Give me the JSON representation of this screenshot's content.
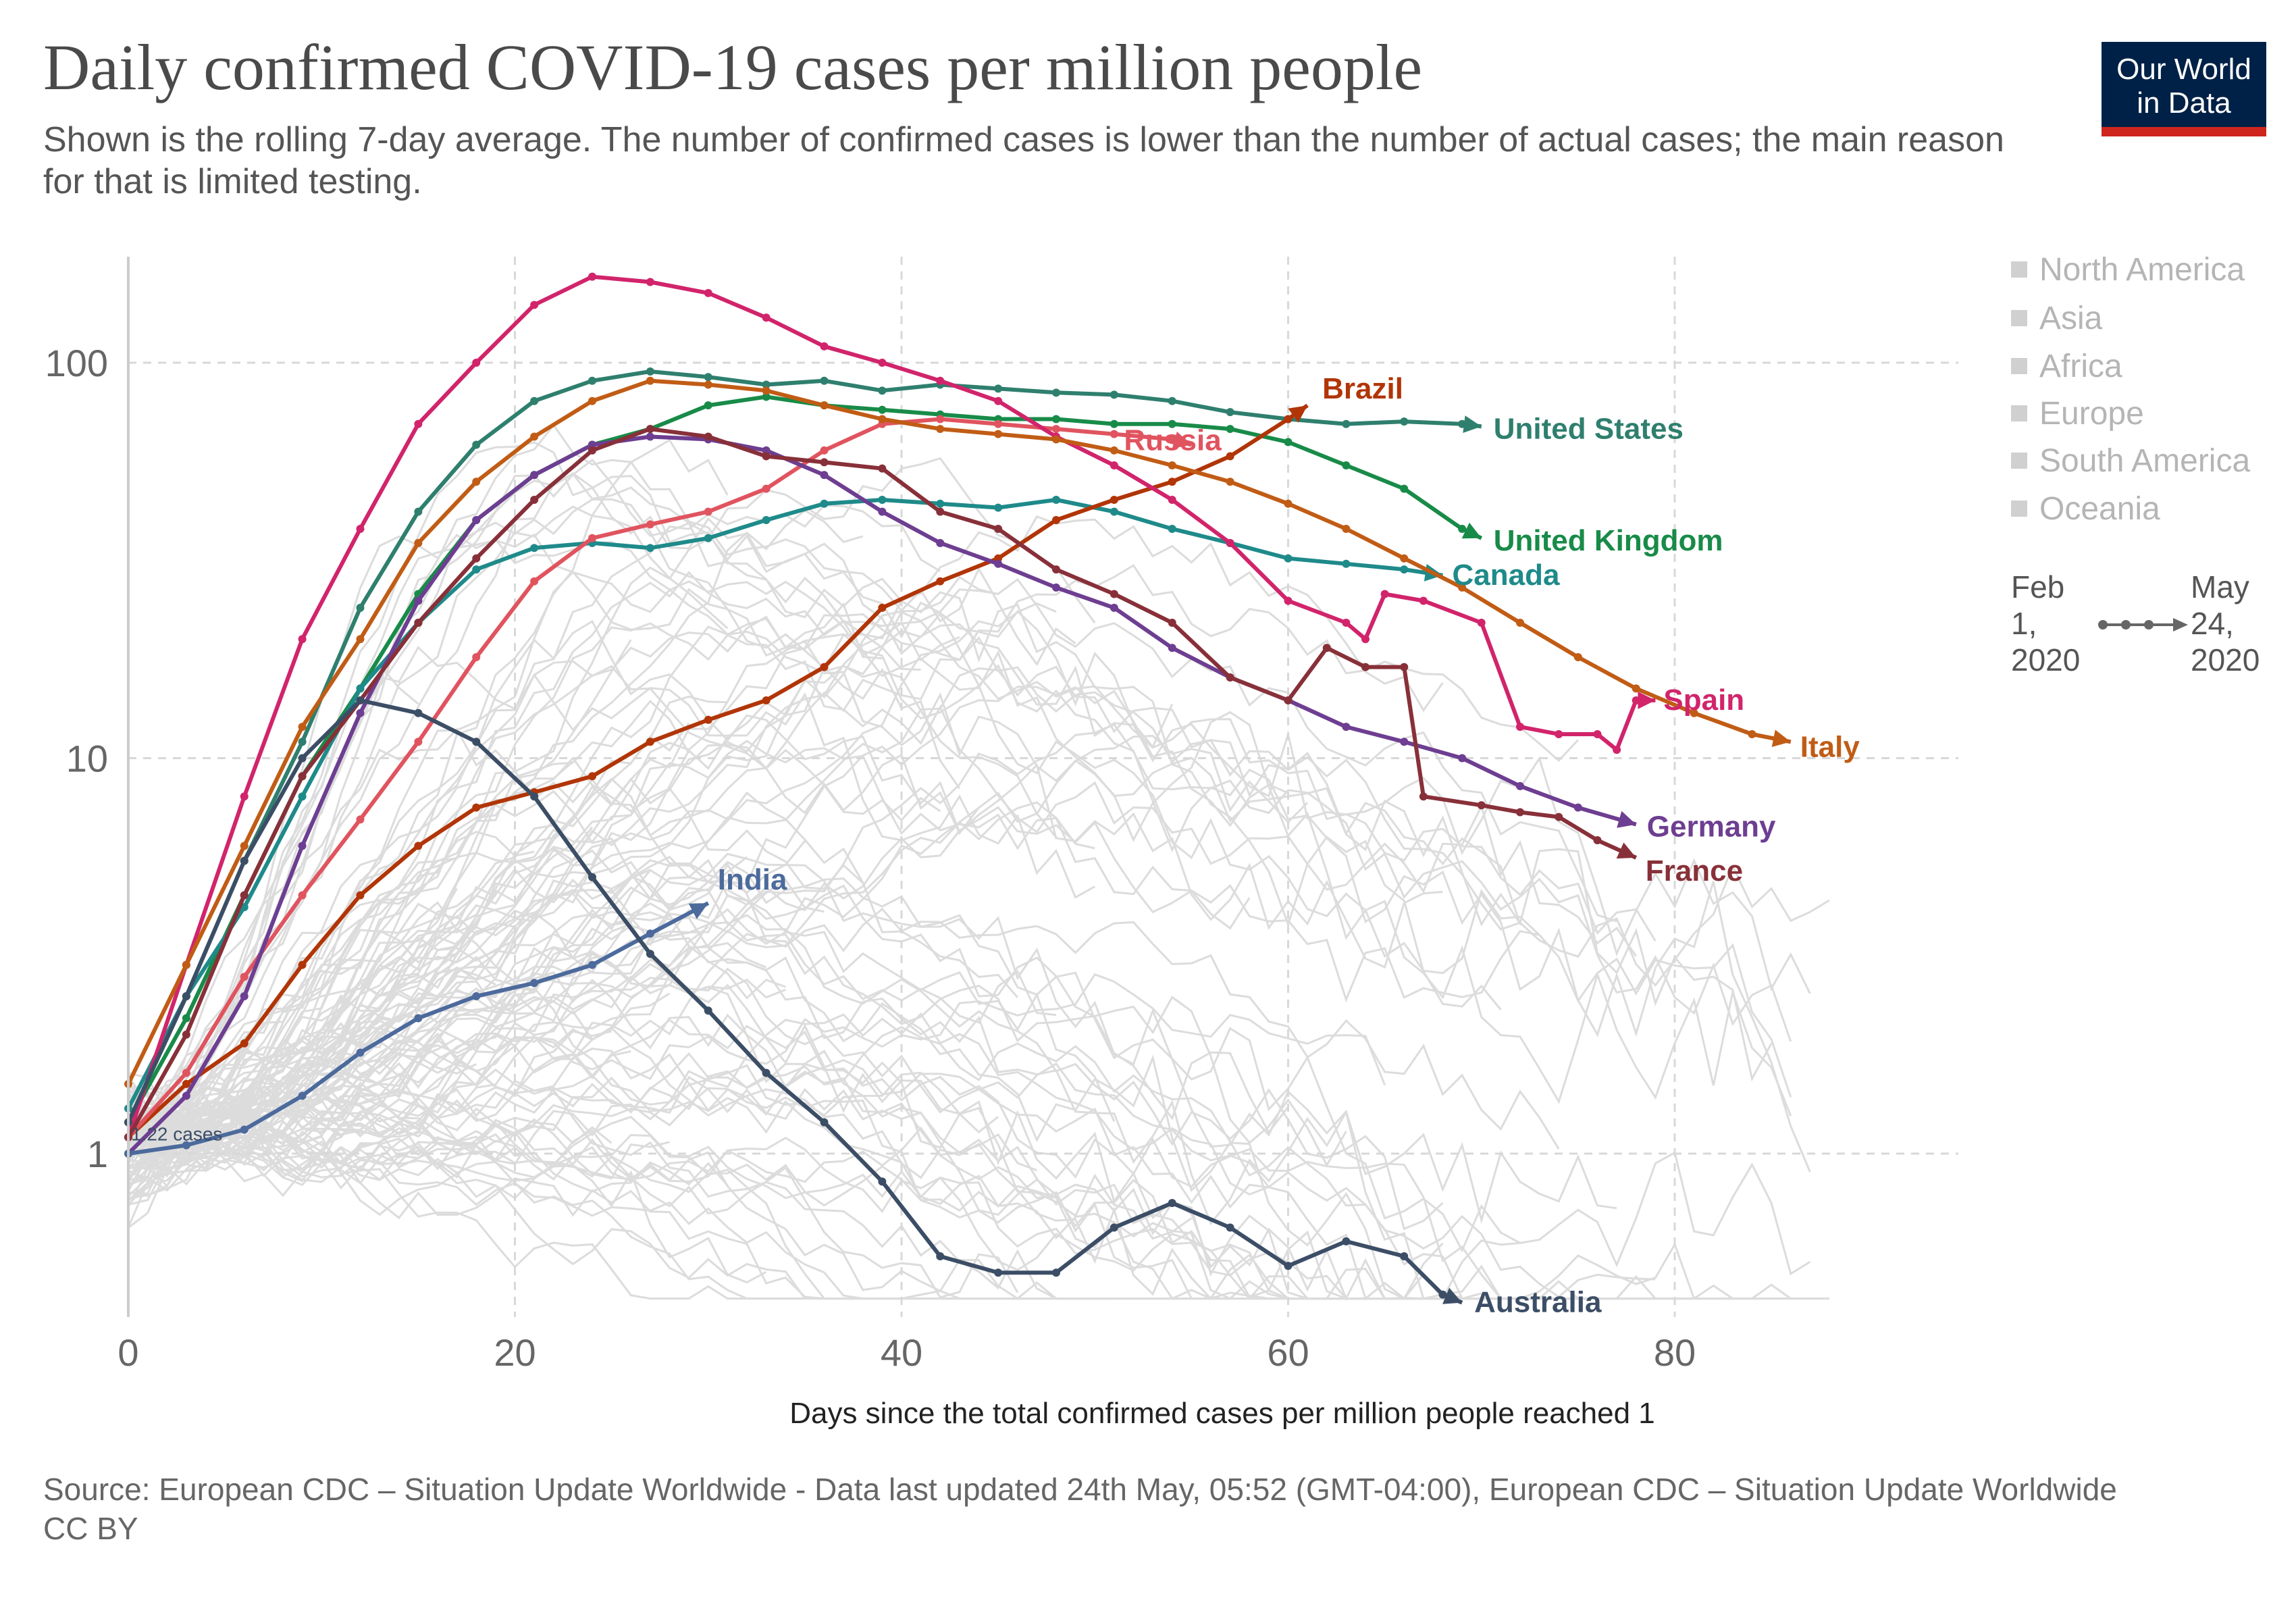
{
  "title": "Daily confirmed COVID-19 cases per million people",
  "subtitle": "Shown is the rolling 7-day average. The number of confirmed cases is lower than the number of actual cases; the main reason for that is limited testing.",
  "logo": {
    "line1": "Our World",
    "line2": "in Data"
  },
  "legend": [
    "North America",
    "Asia",
    "Africa",
    "Europe",
    "South America",
    "Oceania"
  ],
  "timeline": {
    "start_a": "Feb",
    "start_b": "1,",
    "start_c": "2020",
    "end_a": "May",
    "end_b": "24,",
    "end_c": "2020"
  },
  "x_axis_title": "Days since the total confirmed cases per million people reached 1",
  "source_text": "Source: European CDC – Situation Update Worldwide - Data last updated 24th May, 05:52 (GMT-04:00), European CDC – Situation Update Worldwide",
  "license": "CC BY",
  "colors": {
    "logo_bg": "#002147",
    "logo_bar": "#ce261e",
    "background_lines": "#d9d9d9"
  },
  "chart_data": {
    "type": "line",
    "title": "Daily confirmed COVID-19 cases per million people",
    "xlabel": "Days since the total confirmed cases per million people reached 1",
    "ylabel": "",
    "yscale": "log",
    "xlim": [
      0,
      95
    ],
    "ylim": [
      0.42,
      200
    ],
    "xticks": [
      0,
      20,
      40,
      60,
      80
    ],
    "yticks": [
      1,
      10,
      100
    ],
    "ytick_labels": [
      "1",
      "10",
      "100"
    ],
    "grid": true,
    "annotation": "1.22 cases",
    "series": [
      {
        "name": "United States",
        "color": "#2f7f6e",
        "x": [
          0,
          3,
          6,
          9,
          12,
          15,
          18,
          21,
          24,
          27,
          30,
          33,
          36,
          39,
          42,
          45,
          48,
          51,
          54,
          57,
          60,
          63,
          66,
          69,
          70
        ],
        "y": [
          1.2,
          2.5,
          5.5,
          11,
          24,
          42,
          62,
          80,
          90,
          95,
          92,
          88,
          90,
          85,
          88,
          86,
          84,
          83,
          80,
          75,
          72,
          70,
          71,
          70,
          69
        ]
      },
      {
        "name": "United Kingdom",
        "color": "#188b48",
        "x": [
          0,
          3,
          6,
          9,
          12,
          15,
          18,
          21,
          24,
          27,
          30,
          33,
          36,
          39,
          42,
          45,
          48,
          51,
          54,
          57,
          60,
          63,
          66,
          69,
          70
        ],
        "y": [
          1.2,
          2.2,
          4.5,
          9,
          15,
          26,
          40,
          52,
          62,
          68,
          78,
          82,
          78,
          76,
          74,
          72,
          72,
          70,
          70,
          68,
          63,
          55,
          48,
          38,
          36
        ]
      },
      {
        "name": "Canada",
        "color": "#1f8a8a",
        "x": [
          0,
          3,
          6,
          9,
          12,
          15,
          18,
          21,
          24,
          27,
          30,
          33,
          36,
          39,
          42,
          45,
          48,
          51,
          54,
          57,
          60,
          63,
          66,
          68
        ],
        "y": [
          1.3,
          2.5,
          4.2,
          8,
          15,
          22,
          30,
          34,
          35,
          34,
          36,
          40,
          44,
          45,
          44,
          43,
          45,
          42,
          38,
          35,
          32,
          31,
          30,
          29
        ]
      },
      {
        "name": "Brazil",
        "color": "#b13507",
        "x": [
          0,
          3,
          6,
          9,
          12,
          15,
          18,
          21,
          24,
          27,
          30,
          33,
          36,
          39,
          42,
          45,
          48,
          51,
          54,
          57,
          60,
          61
        ],
        "y": [
          1.1,
          1.5,
          1.9,
          3.0,
          4.5,
          6.0,
          7.5,
          8.2,
          9.0,
          11,
          12.5,
          14,
          17,
          24,
          28,
          32,
          40,
          45,
          50,
          58,
          72,
          78
        ]
      },
      {
        "name": "Russia",
        "color": "#e0545f",
        "x": [
          0,
          3,
          6,
          9,
          12,
          15,
          18,
          21,
          24,
          27,
          30,
          33,
          36,
          39,
          42,
          45,
          48,
          51,
          54,
          55
        ],
        "y": [
          1.1,
          1.6,
          2.8,
          4.5,
          7,
          11,
          18,
          28,
          36,
          39,
          42,
          48,
          60,
          70,
          72,
          70,
          68,
          66,
          64,
          62
        ]
      },
      {
        "name": "Spain",
        "color": "#d1246b",
        "x": [
          0,
          3,
          6,
          9,
          12,
          15,
          18,
          21,
          24,
          27,
          30,
          33,
          36,
          39,
          42,
          45,
          48,
          51,
          54,
          57,
          60,
          63,
          64,
          65,
          67,
          70,
          72,
          74,
          76,
          77,
          78,
          79
        ],
        "y": [
          1.1,
          3,
          8,
          20,
          38,
          70,
          100,
          140,
          165,
          160,
          150,
          130,
          110,
          100,
          90,
          80,
          65,
          55,
          45,
          35,
          25,
          22,
          20,
          26,
          25,
          22,
          12,
          11.5,
          11.5,
          10.5,
          14,
          14
        ]
      },
      {
        "name": "Italy",
        "color": "#c15c15",
        "x": [
          0,
          3,
          6,
          9,
          12,
          15,
          18,
          21,
          24,
          27,
          30,
          33,
          36,
          39,
          42,
          45,
          48,
          51,
          54,
          57,
          60,
          63,
          66,
          69,
          72,
          75,
          78,
          81,
          84,
          86
        ],
        "y": [
          1.5,
          3,
          6,
          12,
          20,
          35,
          50,
          65,
          80,
          90,
          88,
          85,
          78,
          72,
          68,
          66,
          64,
          60,
          55,
          50,
          44,
          38,
          32,
          27,
          22,
          18,
          15,
          13,
          11.5,
          11
        ]
      },
      {
        "name": "Germany",
        "color": "#6d3e91",
        "x": [
          0,
          3,
          6,
          9,
          12,
          15,
          18,
          21,
          24,
          27,
          30,
          33,
          36,
          39,
          42,
          45,
          48,
          51,
          54,
          57,
          60,
          63,
          66,
          69,
          72,
          75,
          78
        ],
        "y": [
          1.0,
          1.4,
          2.5,
          6,
          13,
          25,
          40,
          52,
          62,
          65,
          64,
          60,
          52,
          42,
          35,
          31,
          27,
          24,
          19,
          16,
          14,
          12,
          11,
          10,
          8.5,
          7.5,
          6.8
        ]
      },
      {
        "name": "France",
        "color": "#883039",
        "x": [
          0,
          3,
          6,
          9,
          12,
          15,
          18,
          21,
          24,
          27,
          30,
          33,
          36,
          39,
          42,
          45,
          48,
          51,
          54,
          57,
          60,
          62,
          64,
          66,
          67,
          70,
          72,
          74,
          76,
          78
        ],
        "y": [
          1.1,
          2.0,
          4.5,
          9,
          14,
          22,
          32,
          45,
          60,
          68,
          65,
          58,
          56,
          54,
          42,
          38,
          30,
          26,
          22,
          16,
          14,
          19,
          17,
          17,
          8,
          7.6,
          7.3,
          7.1,
          6.2,
          5.6
        ]
      },
      {
        "name": "India",
        "color": "#4c6a9c",
        "x": [
          0,
          3,
          6,
          9,
          12,
          15,
          18,
          21,
          24,
          27,
          30
        ],
        "y": [
          1.0,
          1.05,
          1.15,
          1.4,
          1.8,
          2.2,
          2.5,
          2.7,
          3.0,
          3.6,
          4.3
        ]
      },
      {
        "name": "Australia",
        "color": "#3c4e66",
        "x": [
          0,
          3,
          6,
          9,
          12,
          15,
          18,
          21,
          24,
          27,
          30,
          33,
          36,
          39,
          42,
          45,
          48,
          51,
          54,
          57,
          60,
          63,
          66,
          68,
          69
        ],
        "y": [
          1.2,
          2.5,
          5.5,
          10,
          14,
          13,
          11,
          8,
          5,
          3.2,
          2.3,
          1.6,
          1.2,
          0.85,
          0.55,
          0.5,
          0.5,
          0.65,
          0.75,
          0.65,
          0.52,
          0.6,
          0.55,
          0.44,
          0.42
        ]
      }
    ]
  }
}
